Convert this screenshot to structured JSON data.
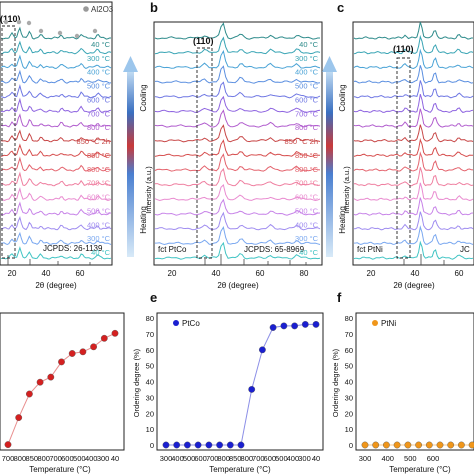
{
  "panels": {
    "a": {
      "letter": "",
      "al2o3_label": "Al2O3",
      "peak_label": "(110)",
      "ref_label": "JCPDS: 26-1139",
      "xlabel": "2θ (degree)",
      "xticks": [
        "20",
        "40",
        "60"
      ]
    },
    "b": {
      "letter": "b",
      "peak_label": "(110)",
      "ref_label": "JCPDS: 65-8969",
      "phase_label": "fct PtCo",
      "xlabel": "2θ (degree)",
      "ylabel": "Intensity (a.u.)",
      "xticks": [
        "20",
        "40",
        "60",
        "80"
      ]
    },
    "c": {
      "letter": "c",
      "peak_label": "(110)",
      "phase_label": "fct PtNi",
      "ref_label": "JC",
      "xlabel": "2θ (degree)",
      "ylabel": "Intensity (a.u.)",
      "xticks": [
        "20",
        "40",
        "60"
      ]
    },
    "e": {
      "letter": "e"
    },
    "f": {
      "letter": "f"
    }
  },
  "arrows": {
    "cooling": "Cooling",
    "heating": "Heating"
  },
  "temperature_labels": [
    "40 °C",
    "300 °C",
    "400 °C",
    "500 °C",
    "600 °C",
    "700 °C",
    "800 °C",
    "850 °C 2h",
    "850 °C",
    "800 °C",
    "700 °C",
    "600 °C",
    "500 °C",
    "400 °C",
    "300 °C",
    "40 °C"
  ],
  "trace_colors": [
    "#2e8b8b",
    "#3aa5b5",
    "#4aa3d6",
    "#5b8fe0",
    "#6f77e3",
    "#8e64e0",
    "#b15dce",
    "#c84848",
    "#d64e4e",
    "#e4646e",
    "#ef7fa0",
    "#e98bd0",
    "#c783e8",
    "#9f8cf0",
    "#7aa8f0",
    "#41c4c4"
  ],
  "chart_data": [
    {
      "type": "line",
      "panel": "d",
      "x": [
        700,
        750,
        800,
        850,
        800,
        700,
        600,
        500,
        400,
        300,
        40
      ],
      "series": [
        {
          "values": [
            2,
            18,
            32,
            39,
            42,
            51,
            56,
            57,
            60,
            65,
            68
          ]
        }
      ],
      "xlabel": "Temperature (°C)",
      "ylabel": "",
      "xticks": [
        "700",
        "800",
        "850",
        "800",
        "700",
        "600",
        "500",
        "400",
        "300",
        "40"
      ],
      "color": "#d42020"
    },
    {
      "type": "line",
      "panel": "e",
      "x": [
        300,
        400,
        500,
        600,
        700,
        800,
        850,
        850,
        800,
        700,
        600,
        500,
        400,
        300,
        40
      ],
      "series": [
        {
          "name": "PtCo",
          "values": [
            0,
            0,
            0,
            0,
            0,
            0,
            0,
            0,
            35,
            60,
            74,
            75,
            75,
            76,
            76
          ]
        }
      ],
      "xlabel": "Temperature (°C)",
      "ylabel": "Ordering degree (%)",
      "ylim": [
        0,
        80
      ],
      "yticks": [
        "0",
        "10",
        "20",
        "30",
        "40",
        "50",
        "60",
        "70",
        "80"
      ],
      "xticks": [
        "300",
        "400",
        "500",
        "600",
        "700",
        "800",
        "850",
        "800",
        "700",
        "600",
        "500",
        "400",
        "300",
        "40"
      ],
      "color": "#1a1fd0"
    },
    {
      "type": "line",
      "panel": "f",
      "x": [
        300,
        400,
        500,
        600,
        700,
        800,
        850,
        850,
        800,
        700,
        600
      ],
      "series": [
        {
          "name": "PtNi",
          "values": [
            0,
            0,
            0,
            0,
            0,
            0,
            0,
            0,
            0,
            0,
            0
          ]
        }
      ],
      "xlabel": "Temperature (°C)",
      "ylabel": "Ordering degree (%)",
      "ylim": [
        0,
        80
      ],
      "yticks": [
        "0",
        "10",
        "20",
        "30",
        "40",
        "50",
        "60",
        "70",
        "80"
      ],
      "xticks": [
        "300",
        "400",
        "500",
        "600"
      ],
      "color": "#f0961a"
    }
  ]
}
